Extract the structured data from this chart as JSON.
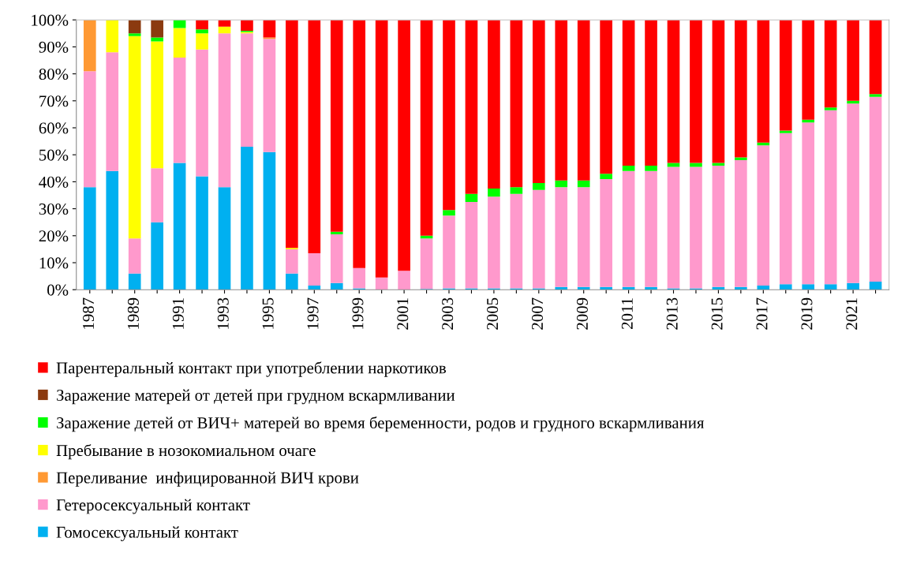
{
  "chart_data": {
    "type": "bar",
    "stacked": true,
    "categories": [
      "1987",
      null,
      "1989",
      null,
      "1991",
      null,
      "1993",
      null,
      "1995",
      null,
      "1997",
      null,
      "1999",
      null,
      "2001",
      null,
      "2003",
      null,
      "2005",
      null,
      "2007",
      null,
      "2009",
      null,
      "2011",
      null,
      "2013",
      null,
      "2015",
      null,
      "2017",
      null,
      "2019",
      null,
      "2021",
      null
    ],
    "ylim": [
      0,
      100
    ],
    "yticks": [
      {
        "value": 0,
        "label": "0%"
      },
      {
        "value": 10,
        "label": "10%"
      },
      {
        "value": 20,
        "label": "20%"
      },
      {
        "value": 30,
        "label": "30%"
      },
      {
        "value": 40,
        "label": "40%"
      },
      {
        "value": 50,
        "label": "50%"
      },
      {
        "value": 60,
        "label": "60%"
      },
      {
        "value": 70,
        "label": "70%"
      },
      {
        "value": 80,
        "label": "80%"
      },
      {
        "value": 90,
        "label": "90%"
      },
      {
        "value": 100,
        "label": "100%"
      }
    ],
    "grid": false,
    "legend": "bottom",
    "series": [
      {
        "name": "Гомосексуальный контакт",
        "color": "#00b0f0",
        "values": [
          38,
          44,
          6,
          25,
          47,
          42,
          38,
          53,
          51,
          6,
          1.5,
          2.5,
          0.5,
          0,
          0,
          0.3,
          0.5,
          0.5,
          0.5,
          0.5,
          0.5,
          1,
          1,
          1,
          1,
          1,
          0.5,
          0.5,
          1,
          1,
          1.5,
          2,
          2,
          2,
          2.5,
          3
        ]
      },
      {
        "name": "Гетеросексуальный контакт",
        "color": "#ff99cc",
        "values": [
          43,
          44,
          13,
          20,
          39,
          47,
          57,
          42,
          42,
          9,
          12,
          18,
          7.5,
          4.5,
          7,
          18.7,
          27,
          32,
          34,
          35,
          36.5,
          37,
          37,
          40,
          43,
          43,
          45,
          45,
          45,
          47,
          52,
          56,
          60,
          64.5,
          66.5,
          68.5
        ]
      },
      {
        "name": "Переливание  инфицированной ВИЧ крови",
        "color": "#ff9933",
        "values": [
          19,
          0,
          0,
          0,
          0,
          0,
          0,
          0,
          0.5,
          0,
          0,
          0,
          0,
          0,
          0,
          0,
          0,
          0,
          0,
          0,
          0,
          0,
          0,
          0,
          0,
          0,
          0,
          0,
          0,
          0,
          0,
          0,
          0,
          0,
          0,
          0
        ]
      },
      {
        "name": "Пребывание в нозокомиальном очаге",
        "color": "#ffff00",
        "values": [
          0,
          12,
          75,
          47,
          11,
          6,
          2.5,
          0.5,
          0,
          0.5,
          0,
          0,
          0,
          0,
          0,
          0,
          0,
          0,
          0,
          0,
          0,
          0,
          0,
          0,
          0,
          0,
          0,
          0,
          0,
          0,
          0,
          0,
          0,
          0,
          0,
          0
        ]
      },
      {
        "name": "Заражение детей от ВИЧ+ матерей во время беременности, родов и грудного вскармливания",
        "color": "#00ff00",
        "values": [
          0,
          0,
          1,
          1.5,
          3,
          1.5,
          0,
          0.5,
          0,
          0,
          0,
          1,
          0,
          0,
          0,
          1,
          2,
          3,
          3,
          2.5,
          2.5,
          2.5,
          2.5,
          2,
          2,
          2,
          1.5,
          1.5,
          1,
          1,
          1,
          1,
          1,
          1,
          1,
          1
        ]
      },
      {
        "name": "Заражение матерей от детей при грудном вскармливании",
        "color": "#8b3a0f",
        "values": [
          0,
          0,
          5,
          6.5,
          0,
          0,
          0,
          0,
          0,
          0,
          0,
          0,
          0,
          0,
          0,
          0,
          0,
          0,
          0,
          0,
          0,
          0,
          0,
          0,
          0,
          0,
          0,
          0,
          0,
          0,
          0,
          0,
          0,
          0,
          0,
          0
        ]
      },
      {
        "name": "Парентеральный контакт при употреблении наркотиков",
        "color": "#ff0000",
        "values": [
          0,
          0,
          0,
          0,
          0,
          3.5,
          2.5,
          4,
          6.5,
          84.5,
          86.5,
          78.5,
          92,
          95.5,
          93,
          80,
          70.5,
          64.5,
          62.5,
          62,
          60.5,
          59.5,
          59.5,
          57,
          54,
          54,
          53,
          53,
          53,
          51,
          45.5,
          41,
          37,
          32.5,
          30,
          27.5
        ]
      }
    ]
  }
}
